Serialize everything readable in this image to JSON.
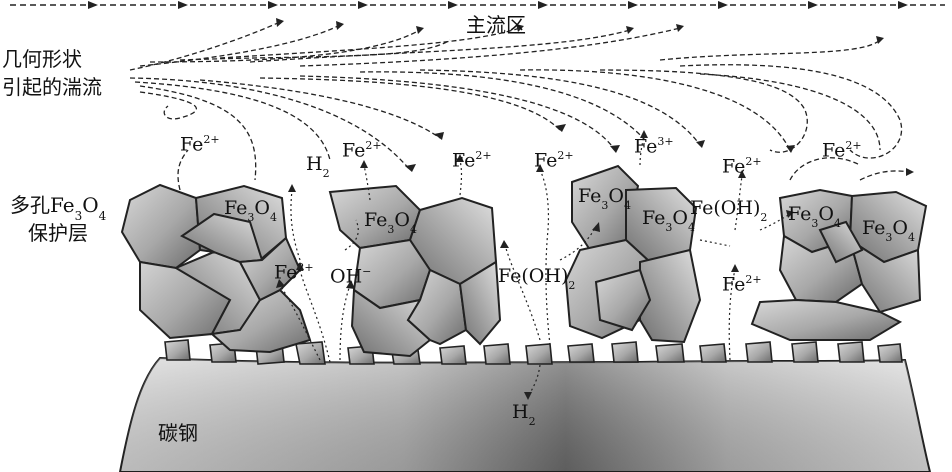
{
  "labels": {
    "main_flow": "主流区",
    "turbulence_line1": "几何形状",
    "turbulence_line2": "引起的湍流",
    "porous_line1_prefix": "多孔",
    "porous_line2": "保护层",
    "steel": "碳钢"
  },
  "species": {
    "fe": "Fe",
    "charge_2": "2+",
    "charge_3": "3+",
    "fe3o4_base": "Fe",
    "fe3o4_sub3": "3",
    "fe3o4_o": "O",
    "fe3o4_sub4": "4",
    "h2_base": "H",
    "h2_sub": "2",
    "oh_base": "OH",
    "oh_charge": "−",
    "feoh2_base": "Fe(OH)",
    "feoh2_sub": "2"
  },
  "colors": {
    "grain_light": "#d6d6d6",
    "grain_dark": "#6f6f6f",
    "steel_light": "#d9d9d9",
    "steel_dark": "#6a6a6a"
  }
}
